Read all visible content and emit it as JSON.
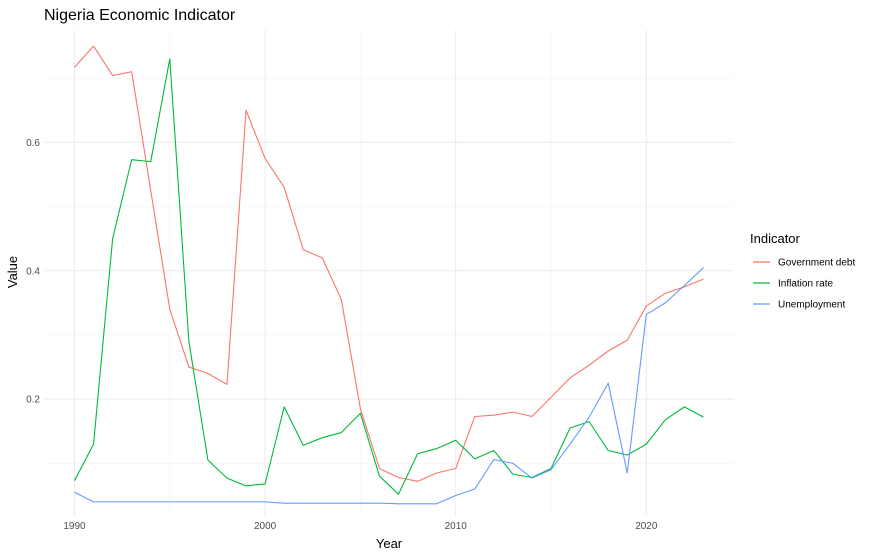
{
  "chart_data": {
    "type": "line",
    "title": "Nigeria Economic Indicator",
    "xlabel": "Year",
    "ylabel": "Value",
    "xlim": [
      1988.4,
      2024.6
    ],
    "ylim": [
      0.018,
      0.775
    ],
    "x_ticks": [
      1990,
      2000,
      2010,
      2020
    ],
    "y_ticks": [
      0.2,
      0.4,
      0.6
    ],
    "legend_title": "Indicator",
    "legend_position": "right",
    "grid": true,
    "x": [
      1990,
      1991,
      1992,
      1993,
      1994,
      1995,
      1996,
      1997,
      1998,
      1999,
      2000,
      2001,
      2002,
      2003,
      2004,
      2005,
      2006,
      2007,
      2008,
      2009,
      2010,
      2011,
      2012,
      2013,
      2014,
      2015,
      2016,
      2017,
      2018,
      2019,
      2020,
      2021,
      2022,
      2023
    ],
    "series": [
      {
        "name": "Government debt",
        "color": "#F8766D",
        "values": [
          0.717,
          0.75,
          0.704,
          0.71,
          0.525,
          0.34,
          0.25,
          0.24,
          0.223,
          0.65,
          0.575,
          0.53,
          0.433,
          0.42,
          0.355,
          0.185,
          0.092,
          0.078,
          0.072,
          0.085,
          0.092,
          0.173,
          0.175,
          0.18,
          0.173,
          0.203,
          0.233,
          0.253,
          0.275,
          0.292,
          0.345,
          0.365,
          0.375,
          0.387
        ]
      },
      {
        "name": "Inflation rate",
        "color": "#00BA38",
        "values": [
          0.073,
          0.13,
          0.45,
          0.573,
          0.57,
          0.73,
          0.29,
          0.105,
          0.077,
          0.065,
          0.068,
          0.188,
          0.128,
          0.14,
          0.148,
          0.178,
          0.08,
          0.052,
          0.115,
          0.123,
          0.136,
          0.107,
          0.12,
          0.083,
          0.078,
          0.092,
          0.155,
          0.165,
          0.12,
          0.113,
          0.13,
          0.168,
          0.188,
          0.172
        ]
      },
      {
        "name": "Unemployment",
        "color": "#619CFF",
        "values": [
          0.055,
          0.04,
          0.04,
          0.04,
          0.04,
          0.04,
          0.04,
          0.04,
          0.04,
          0.04,
          0.04,
          0.038,
          0.038,
          0.038,
          0.038,
          0.038,
          0.038,
          0.037,
          0.037,
          0.037,
          0.05,
          0.06,
          0.106,
          0.1,
          0.077,
          0.09,
          0.13,
          0.172,
          0.225,
          0.085,
          0.332,
          0.35,
          0.377,
          0.405
        ]
      }
    ]
  }
}
